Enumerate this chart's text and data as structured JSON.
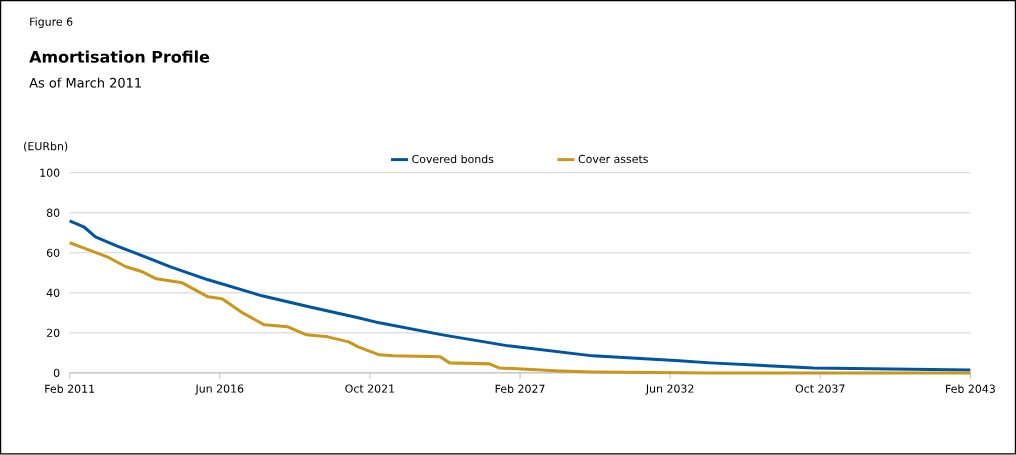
{
  "chart_data": {
    "type": "line",
    "title": "Amortisation Profile",
    "subtitle": "As of March 2011",
    "ylabel": "(EURbn)",
    "annotations": [
      "Figure 6"
    ],
    "ylim": [
      0,
      100
    ],
    "yticks": [
      0,
      20,
      40,
      60,
      80,
      100
    ],
    "xlim": [
      "2011-02",
      "2043-02"
    ],
    "xticks": [
      {
        "value": "2011-02",
        "label": "Feb 2011"
      },
      {
        "value": "2016-06",
        "label": "Jun 2016"
      },
      {
        "value": "2021-10",
        "label": "Oct 2021"
      },
      {
        "value": "2027-02",
        "label": "Feb 2027"
      },
      {
        "value": "2032-06",
        "label": "Jun 2032"
      },
      {
        "value": "2037-10",
        "label": "Oct 2037"
      },
      {
        "value": "2043-02",
        "label": "Feb 2043"
      }
    ],
    "grid": "y",
    "legend": "top",
    "marker": "none",
    "line_style": "solid",
    "series": [
      {
        "name": "Covered bonds",
        "color": "#0055a0",
        "x": [
          "2011-02",
          "2011-08",
          "2012-01",
          "2012-10",
          "2013-08",
          "2014-09",
          "2016-01",
          "2017-12",
          "2019-08",
          "2021-05",
          "2022-02",
          "2024-05",
          "2026-09",
          "2029-09",
          "2032-10",
          "2033-11",
          "2037-07",
          "2043-02"
        ],
        "values": [
          76,
          73,
          68,
          63.5,
          59,
          53,
          46.5,
          38.5,
          33,
          27.5,
          25,
          19,
          13.5,
          8.5,
          6,
          5,
          2.5,
          1.5
        ]
      },
      {
        "name": "Cover assets",
        "color": "#c9971c",
        "x": [
          "2011-02",
          "2011-09",
          "2012-06",
          "2013-02",
          "2013-09",
          "2014-03",
          "2015-02",
          "2016-01",
          "2016-07",
          "2017-03",
          "2018-01",
          "2018-11",
          "2019-07",
          "2020-04",
          "2021-01",
          "2021-05",
          "2022-02",
          "2022-08",
          "2024-04",
          "2024-08",
          "2026-01",
          "2026-05",
          "2028-07",
          "2029-09",
          "2033-11",
          "2043-02"
        ],
        "values": [
          65,
          62,
          58,
          53,
          50.5,
          47,
          45,
          38,
          37,
          30.5,
          24,
          23,
          19,
          18,
          15.5,
          13,
          9,
          8.5,
          8,
          5,
          4.5,
          2.5,
          1,
          0.5,
          0,
          0
        ]
      }
    ]
  }
}
